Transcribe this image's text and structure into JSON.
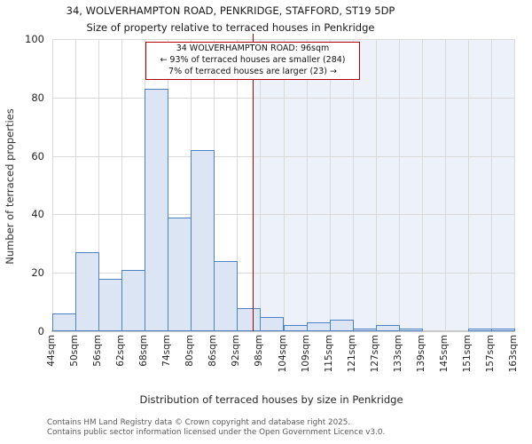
{
  "title": {
    "line1": "34, WOLVERHAMPTON ROAD, PENKRIDGE, STAFFORD, ST19 5DP",
    "line2": "Size of property relative to terraced houses in Penkridge"
  },
  "chart_data": {
    "type": "bar",
    "title": "34, WOLVERHAMPTON ROAD, PENKRIDGE, STAFFORD, ST19 5DP",
    "subtitle": "Size of property relative to terraced houses in Penkridge",
    "xlabel": "Distribution of terraced houses by size in Penkridge",
    "ylabel": "Number of terraced properties",
    "bin_edges_sqm": [
      44,
      50,
      56,
      62,
      68,
      74,
      80,
      86,
      92,
      98,
      104,
      109,
      115,
      121,
      127,
      133,
      139,
      145,
      151,
      157,
      163
    ],
    "categories": [
      "44sqm",
      "50sqm",
      "56sqm",
      "62sqm",
      "68sqm",
      "74sqm",
      "80sqm",
      "86sqm",
      "92sqm",
      "98sqm",
      "104sqm",
      "109sqm",
      "115sqm",
      "121sqm",
      "127sqm",
      "133sqm",
      "139sqm",
      "145sqm",
      "151sqm",
      "157sqm",
      "163sqm"
    ],
    "values": [
      6,
      27,
      18,
      21,
      83,
      39,
      62,
      24,
      8,
      5,
      2,
      3,
      4,
      1,
      2,
      1,
      0,
      0,
      1,
      1
    ],
    "ylim": [
      0,
      100
    ],
    "yticks": [
      0,
      20,
      40,
      60,
      80,
      100
    ],
    "grid": true,
    "legend": "none",
    "marker": {
      "value_sqm": 96,
      "smaller_count": 284,
      "smaller_pct": 93,
      "larger_count": 23,
      "larger_pct": 7
    },
    "annotation": {
      "line1": "34 WOLVERHAMPTON ROAD: 96sqm",
      "line2": "← 93% of terraced houses are smaller (284)",
      "line3": "7% of terraced houses are larger (23) →"
    },
    "colors": {
      "bar_fill": "#dbe5f4",
      "bar_stroke": "#4e82c4",
      "grid": "#d9d9d9",
      "axis_line": "#c9c9c9",
      "marker": "#b30000",
      "highlight_bg": "#edf1fa",
      "annotation_border": "#b30000",
      "annotation_bg": "#ffffff"
    }
  },
  "footer": {
    "line1": "Contains HM Land Registry data © Crown copyright and database right 2025.",
    "line2": "Contains public sector information licensed under the Open Government Licence v3.0."
  }
}
